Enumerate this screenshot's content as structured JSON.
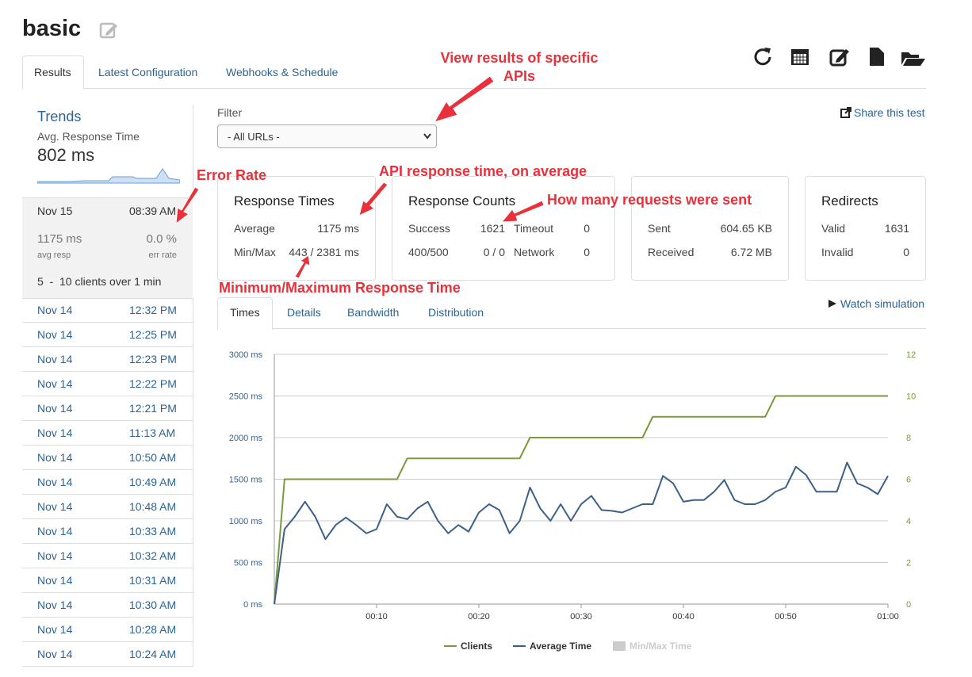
{
  "header": {
    "title": "basic",
    "tabs": [
      "Results",
      "Latest Configuration",
      "Webhooks & Schedule"
    ]
  },
  "annotations": {
    "filter": "View results of specific APIs",
    "error_rate": "Error Rate",
    "average": "API response time, on average",
    "requests": "How many requests were sent",
    "minmax": "Minimum/Maximum Response Time"
  },
  "sidebar": {
    "title": "Trends",
    "subtitle": "Avg. Response Time",
    "value": "802 ms",
    "selected": {
      "date": "Nov 15",
      "time": "08:39 AM",
      "avg": "1175 ms",
      "avg_label": "avg resp",
      "err": "0.0 %",
      "err_label": "err rate",
      "clients": "5  -  10 clients over 1 min"
    },
    "runs": [
      [
        "Nov 14",
        "12:32 PM"
      ],
      [
        "Nov 14",
        "12:25 PM"
      ],
      [
        "Nov 14",
        "12:23 PM"
      ],
      [
        "Nov 14",
        "12:22 PM"
      ],
      [
        "Nov 14",
        "12:21 PM"
      ],
      [
        "Nov 14",
        "11:13 AM"
      ],
      [
        "Nov 14",
        "10:50 AM"
      ],
      [
        "Nov 14",
        "10:49 AM"
      ],
      [
        "Nov 14",
        "10:48 AM"
      ],
      [
        "Nov 14",
        "10:33 AM"
      ],
      [
        "Nov 14",
        "10:32 AM"
      ],
      [
        "Nov 14",
        "10:31 AM"
      ],
      [
        "Nov 14",
        "10:30 AM"
      ],
      [
        "Nov 14",
        "10:28 AM"
      ],
      [
        "Nov 14",
        "10:24 AM"
      ]
    ]
  },
  "filter": {
    "label": "Filter",
    "select": "- All URLs -",
    "share": "Share this test"
  },
  "cards": [
    {
      "title": "Response Times",
      "rows": [
        [
          "Average",
          "1175 ms"
        ],
        [
          "Min/Max",
          "443 / 2381 ms"
        ]
      ]
    },
    {
      "title": "Response Counts",
      "rows": [
        [
          "Success",
          "1621",
          "Timeout",
          "0"
        ],
        [
          "400/500",
          "0 / 0",
          "Network",
          "0"
        ]
      ]
    },
    {
      "rows": [
        [
          "Sent",
          "604.65 KB"
        ],
        [
          "Received",
          "6.72 MB"
        ]
      ]
    },
    {
      "title": "Redirects",
      "rows": [
        [
          "Valid",
          "1631"
        ],
        [
          "Invalid",
          "0"
        ]
      ]
    }
  ],
  "subtabs": [
    "Times",
    "Details",
    "Bandwidth",
    "Distribution"
  ],
  "watch": "Watch simulation",
  "chart_data": {
    "type": "line",
    "x": [
      0,
      1,
      2,
      3,
      4,
      5,
      6,
      7,
      8,
      9,
      10,
      11,
      12,
      13,
      14,
      15,
      16,
      17,
      18,
      19,
      20,
      21,
      22,
      23,
      24,
      25,
      26,
      27,
      28,
      29,
      30,
      31,
      32,
      33,
      34,
      35,
      36,
      37,
      38,
      39,
      40,
      41,
      42,
      43,
      44,
      45,
      46,
      47,
      48,
      49,
      50,
      51,
      52,
      53,
      54,
      55,
      56,
      57,
      58,
      59,
      60
    ],
    "series": [
      {
        "name": "Clients",
        "color": "#7a9a3c",
        "axis": "y2",
        "values": [
          0,
          6,
          6,
          6,
          6,
          6,
          6,
          6,
          6,
          6,
          6,
          6,
          6,
          7,
          7,
          7,
          7,
          7,
          7,
          7,
          7,
          7,
          7,
          7,
          7,
          8,
          8,
          8,
          8,
          8,
          8,
          8,
          8,
          8,
          8,
          8,
          8,
          9,
          9,
          9,
          9,
          9,
          9,
          9,
          9,
          9,
          9,
          9,
          9,
          10,
          10,
          10,
          10,
          10,
          10,
          10,
          10,
          10,
          10,
          10,
          10
        ]
      },
      {
        "name": "Average Time",
        "color": "#3c6088",
        "values": [
          0,
          900,
          1050,
          1230,
          1050,
          780,
          950,
          1040,
          950,
          850,
          900,
          1200,
          1050,
          1020,
          1150,
          1230,
          1000,
          850,
          950,
          870,
          1100,
          1200,
          1130,
          850,
          1000,
          1400,
          1150,
          1000,
          1200,
          1000,
          1200,
          1300,
          1130,
          1120,
          1100,
          1150,
          1200,
          1200,
          1540,
          1450,
          1230,
          1250,
          1250,
          1350,
          1490,
          1250,
          1200,
          1200,
          1250,
          1350,
          1400,
          1650,
          1550,
          1350,
          1350,
          1350,
          1700,
          1450,
          1400,
          1320,
          1540
        ]
      },
      {
        "name": "Min/Max Time",
        "color": "#cccccc",
        "visible": false
      }
    ],
    "xlim": [
      0,
      60
    ],
    "xticks": [
      {
        "value": 10,
        "label": "00:10"
      },
      {
        "value": 20,
        "label": "00:20"
      },
      {
        "value": 30,
        "label": "00:30"
      },
      {
        "value": 40,
        "label": "00:40"
      },
      {
        "value": 50,
        "label": "00:50"
      },
      {
        "value": 60,
        "label": "01:00"
      }
    ],
    "ylim": [
      0,
      3000
    ],
    "yticks": [
      {
        "value": 0,
        "label": "0 ms"
      },
      {
        "value": 500,
        "label": "500 ms"
      },
      {
        "value": 1000,
        "label": "1000 ms"
      },
      {
        "value": 1500,
        "label": "1500 ms"
      },
      {
        "value": 2000,
        "label": "2000 ms"
      },
      {
        "value": 2500,
        "label": "2500 ms"
      },
      {
        "value": 3000,
        "label": "3000 ms"
      }
    ],
    "y2lim": [
      0,
      12
    ],
    "y2ticks": [
      0,
      2,
      4,
      6,
      8,
      10,
      12
    ],
    "grid": true
  }
}
